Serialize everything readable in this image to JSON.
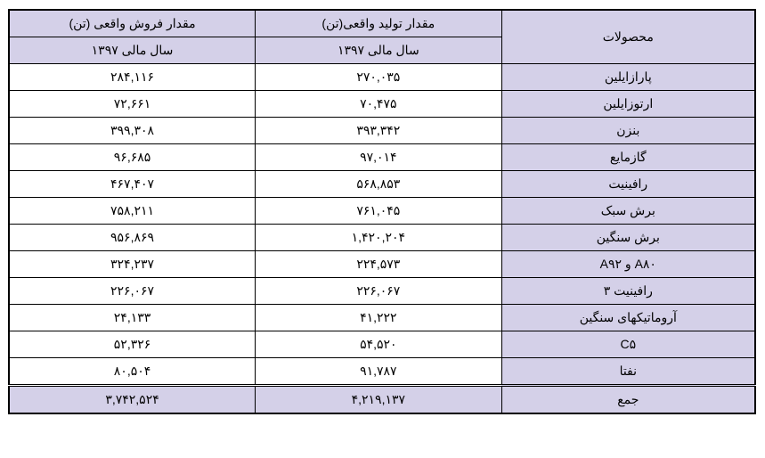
{
  "table": {
    "headers": {
      "sales": "مقدار فروش واقعی (تن)",
      "production": "مقدار تولید واقعی(تن)",
      "products": "محصولات",
      "fiscal_year": "سال مالی ۱۳۹۷"
    },
    "rows": [
      {
        "product": "پارازایلین",
        "production": "۲۷۰,۰۳۵",
        "sales": "۲۸۴,۱۱۶"
      },
      {
        "product": "ارتوزایلین",
        "production": "۷۰,۴۷۵",
        "sales": "۷۲,۶۶۱"
      },
      {
        "product": "بنزن",
        "production": "۳۹۳,۳۴۲",
        "sales": "۳۹۹,۳۰۸"
      },
      {
        "product": "گازمایع",
        "production": "۹۷,۰۱۴",
        "sales": "۹۶,۶۸۵"
      },
      {
        "product": "رافینیت",
        "production": "۵۶۸,۸۵۳",
        "sales": "۴۶۷,۴۰۷"
      },
      {
        "product": "برش سبک",
        "production": "۷۶۱,۰۴۵",
        "sales": "۷۵۸,۲۱۱"
      },
      {
        "product": "برش سنگین",
        "production": "۱,۴۲۰,۲۰۴",
        "sales": "۹۵۶,۸۶۹"
      },
      {
        "product": "A۸۰ و A۹۲",
        "production": "۲۲۴,۵۷۳",
        "sales": "۳۲۴,۲۳۷"
      },
      {
        "product": "رافینیت ۳",
        "production": "۲۲۶,۰۶۷",
        "sales": "۲۲۶,۰۶۷"
      },
      {
        "product": "آروماتیکهای سنگین",
        "production": "۴۱,۲۲۲",
        "sales": "۲۴,۱۳۳"
      },
      {
        "product": "C۵",
        "production": "۵۴,۵۲۰",
        "sales": "۵۲,۳۲۶"
      },
      {
        "product": "نفتا",
        "production": "۹۱,۷۸۷",
        "sales": "۸۰,۵۰۴"
      }
    ],
    "total": {
      "label": "جمع",
      "production": "۴,۲۱۹,۱۳۷",
      "sales": "۳,۷۴۲,۵۲۴"
    },
    "colors": {
      "header_bg": "#d4d0e8",
      "border": "#000000",
      "cell_bg": "#ffffff"
    }
  }
}
